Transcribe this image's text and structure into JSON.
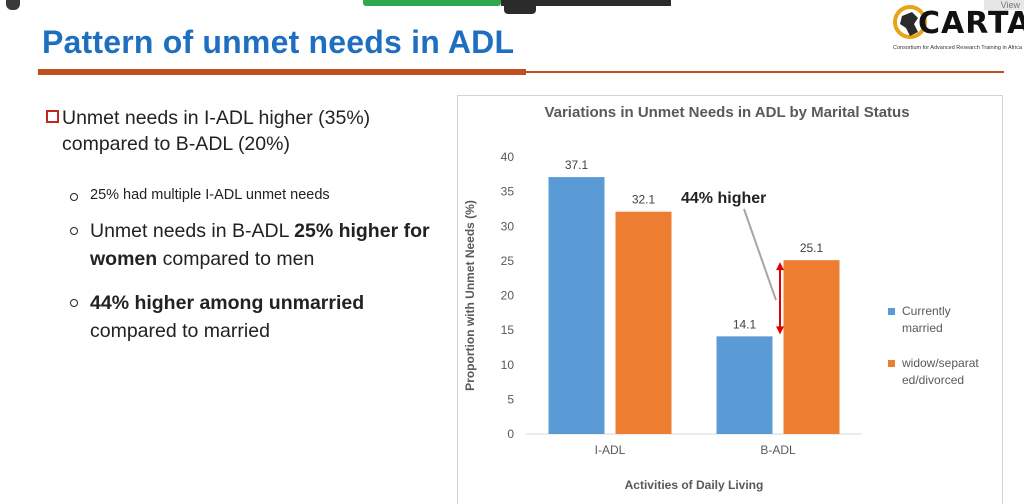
{
  "slide": {
    "title": "Pattern of unmet needs in ADL",
    "logo_text": "CARTA",
    "logo_subtitle": "Consortium for Advanced Research Training in Africa"
  },
  "bullets": {
    "main": "Unmet needs in I-ADL higher (35%) compared to B-ADL (20%)",
    "sub1": "25% had multiple I-ADL unmet needs",
    "sub2_pre": "Unmet needs in B-ADL ",
    "sub2_bold": "25% higher for women",
    "sub2_post": " compared to men",
    "sub3_bold": "44% higher among unmarried",
    "sub3_post": " compared to married"
  },
  "topbar": {
    "view_label": "View"
  },
  "colors": {
    "title_blue": "#1f6fc1",
    "accent_orange": "#c0501f",
    "series1": "#5b9bd5",
    "series2": "#ed7d31",
    "arrow": "#e00000"
  },
  "chart_data": {
    "type": "bar",
    "title": "Variations in Unmet Needs in ADL by Marital Status",
    "xlabel": "Activities of Daily Living",
    "ylabel": "Proportion with Unmet Needs (%)",
    "categories": [
      "I-ADL",
      "B-ADL"
    ],
    "series": [
      {
        "name": "Currently married",
        "values": [
          37.1,
          14.1
        ],
        "color": "#5b9bd5"
      },
      {
        "name": "widow/separated/divorced",
        "values": [
          32.1,
          25.1
        ],
        "color": "#ed7d31"
      }
    ],
    "value_labels": [
      [
        "37.1",
        "14.1"
      ],
      [
        "32.1",
        "25.1"
      ]
    ],
    "ylim": [
      0,
      40
    ],
    "yticks": [
      0,
      5,
      10,
      15,
      20,
      25,
      30,
      35,
      40
    ],
    "grid": false,
    "legend_position": "right",
    "legend_lines": [
      [
        "Currently",
        "married"
      ],
      [
        "widow/separat",
        "ed/divorced"
      ]
    ],
    "annotation": "44% higher"
  }
}
